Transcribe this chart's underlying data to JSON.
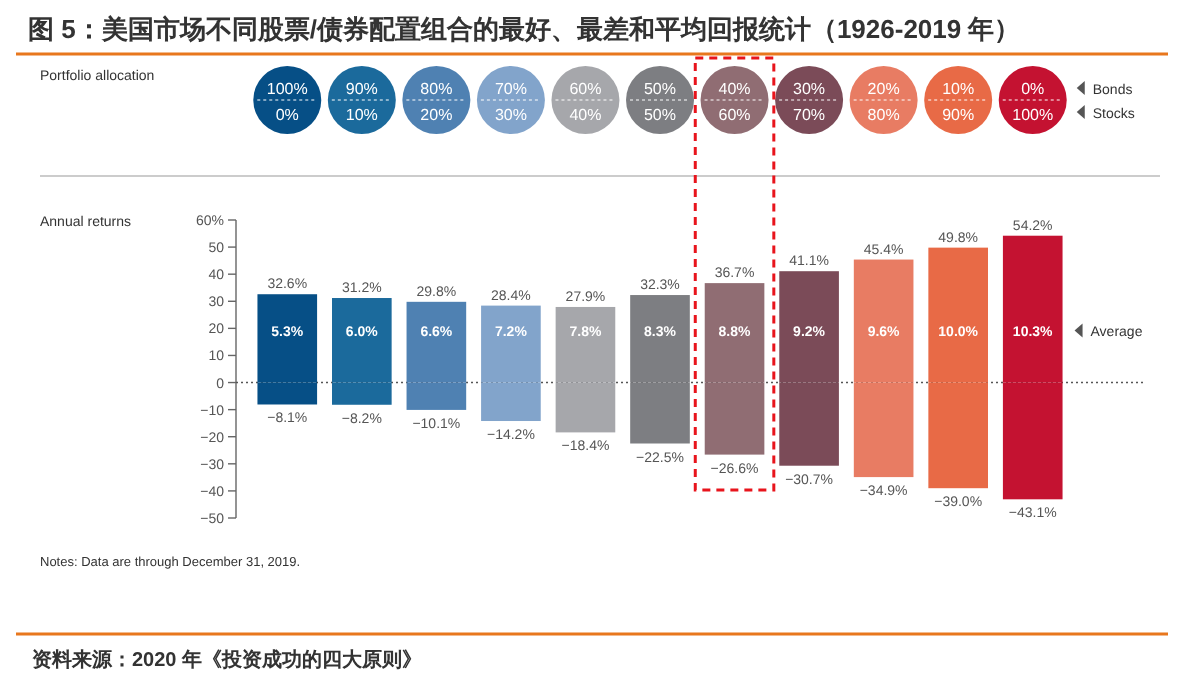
{
  "chart_data": {
    "type": "bar",
    "stacked": true,
    "title": "图 5：美国市场不同股票/债券配置组合的最好、最差和平均回报统计（1926-2019 年）",
    "categories": [
      "100%\n0%",
      "90%\n10%",
      "80%\n20%",
      "70%\n30%",
      "60%\n40%",
      "50%\n50%",
      "40%\n60%",
      "30%\n70%",
      "20%\n80%",
      "10%\n90%",
      "0%\n100%"
    ],
    "series": [
      {
        "colors": [
          "#064f86",
          "#1b6a9c",
          "#4f81b2",
          "#82a4cb",
          "#a6a7ab",
          "#7d7e82",
          "#906d73",
          "#7b4b58",
          "#e87c63",
          "#e86a46",
          "#c41231"
        ],
        "values": [
          32.6,
          31.2,
          29.8,
          28.4,
          27.9,
          32.3,
          36.7,
          41.1,
          45.4,
          49.8,
          54.2
        ],
        "value_labels": [
          "32.6%",
          "31.2%",
          "29.8%",
          "28.4%",
          "27.9%",
          "32.3%",
          "36.7%",
          "41.1%",
          "45.4%",
          "49.8%",
          "54.2%"
        ]
      },
      {
        "colors": [
          "#064f86",
          "#1b6a9c",
          "#4f81b2",
          "#82a4cb",
          "#a6a7ab",
          "#7d7e82",
          "#906d73",
          "#7b4b58",
          "#e87c63",
          "#e86a46",
          "#c41231"
        ],
        "values": [
          -8.1,
          -8.2,
          -10.1,
          -14.2,
          -18.4,
          -22.5,
          -26.6,
          -30.7,
          -34.9,
          -39.0,
          -43.1
        ],
        "value_labels": [
          "−8.1%",
          "−8.2%",
          "−10.1%",
          "−14.2%",
          "−18.4%",
          "−22.5%",
          "−26.6%",
          "−30.7%",
          "−34.9%",
          "−39.0%",
          "−43.1%"
        ]
      }
    ],
    "ylim": [
      -50,
      60
    ],
    "yticks": [
      {
        "value": 60,
        "label": "60%"
      },
      50,
      40,
      30,
      20,
      10,
      0,
      {
        "value": -10,
        "label": "−10"
      },
      {
        "value": -20,
        "label": "−20"
      },
      {
        "value": -30,
        "label": "−30"
      },
      {
        "value": -40,
        "label": "−40"
      },
      {
        "value": -50,
        "label": "−50"
      }
    ],
    "ref_lines": [
      {
        "axis": "y",
        "value": 0,
        "line_style": "dotted",
        "color": "#555555"
      }
    ],
    "annotations": [
      "Portfolio allocation",
      "Bonds",
      "Stocks",
      "Annual returns",
      "Average",
      "Notes: Data are through December 31, 2019.",
      "资料来源：2020 年《投资成功的四大原则》",
      "5.3%",
      "6.0%",
      "6.6%",
      "7.2%",
      "7.8%",
      "8.3%",
      "8.8%",
      "9.2%",
      "9.6%",
      "10.0%",
      "10.3%"
    ]
  }
}
